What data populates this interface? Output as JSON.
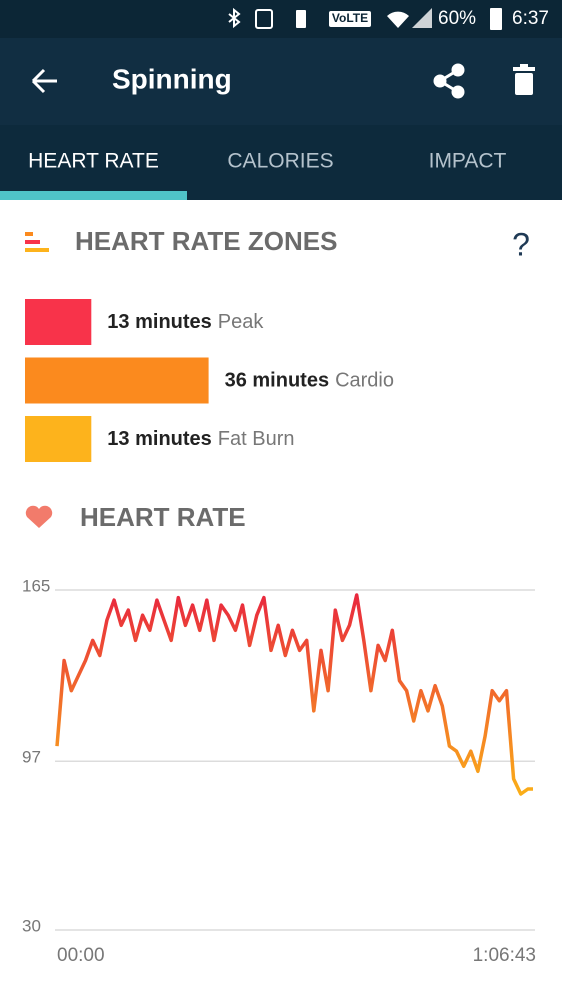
{
  "status_bar": {
    "network": "VoLTE",
    "battery": "60%",
    "time": "6:37"
  },
  "app_bar": {
    "title": "Spinning"
  },
  "tabs": [
    "HEART RATE",
    "CALORIES",
    "IMPACT"
  ],
  "zones": {
    "title": "HEART RATE ZONES",
    "help": "?",
    "items": [
      {
        "amount": 13,
        "amount_label": "13 minutes",
        "name": "Peak",
        "color": "#f8334a"
      },
      {
        "amount": 36,
        "amount_label": "36 minutes",
        "name": "Cardio",
        "color": "#fb8a1e"
      },
      {
        "amount": 13,
        "amount_label": "13 minutes",
        "name": "Fat Burn",
        "color": "#fdb31c"
      }
    ]
  },
  "chart_data": {
    "type": "line",
    "title": "HEART RATE",
    "x": [
      0,
      60,
      120,
      180,
      240,
      300,
      360,
      420,
      480,
      540,
      600,
      660,
      720,
      780,
      840,
      900,
      960,
      1020,
      1080,
      1140,
      1200,
      1260,
      1320,
      1380,
      1440,
      1500,
      1560,
      1620,
      1680,
      1740,
      1800,
      1860,
      1920,
      1980,
      2040,
      2100,
      2160,
      2220,
      2280,
      2340,
      2400,
      2460,
      2520,
      2580,
      2640,
      2700,
      2760,
      2820,
      2880,
      2940,
      3000,
      3060,
      3120,
      3180,
      3240,
      3300,
      3360,
      3420,
      3480,
      3540,
      3600,
      3660,
      3720,
      3780,
      3840,
      3900,
      3960,
      4003
    ],
    "values": [
      103,
      137,
      125,
      131,
      137,
      145,
      139,
      153,
      161,
      151,
      157,
      145,
      155,
      149,
      161,
      153,
      145,
      162,
      151,
      159,
      149,
      161,
      145,
      159,
      155,
      149,
      159,
      143,
      155,
      162,
      141,
      151,
      139,
      149,
      141,
      145,
      117,
      141,
      125,
      157,
      145,
      151,
      163,
      145,
      125,
      143,
      137,
      149,
      129,
      125,
      113,
      125,
      117,
      127,
      119,
      103,
      101,
      95,
      101,
      93,
      107,
      125,
      121,
      125,
      90,
      84,
      86,
      86
    ],
    "xlim": [
      0,
      4003
    ],
    "xticks": [
      {
        "value": 0,
        "label": "00:00"
      },
      {
        "value": 4003,
        "label": "1:06:43"
      }
    ],
    "ylim": [
      30,
      165
    ],
    "yticks": [
      30,
      97,
      165
    ],
    "grid": true,
    "colors": [
      "#e8253f",
      "#fbb217"
    ]
  }
}
